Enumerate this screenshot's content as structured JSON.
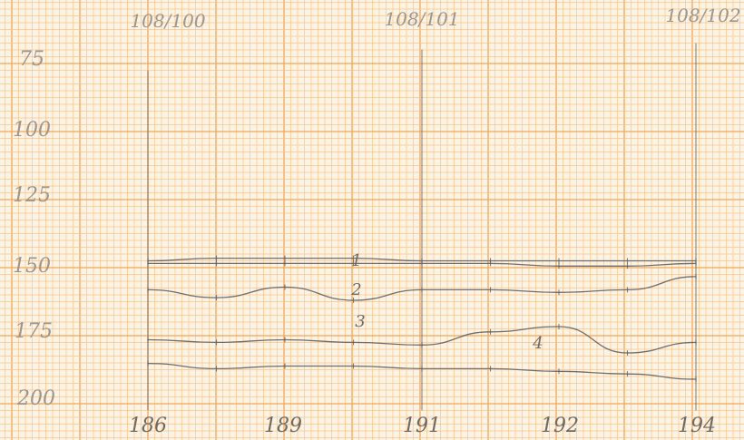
{
  "chart_data": {
    "type": "line",
    "title": "",
    "xlabel": "",
    "ylabel": "",
    "top_labels": [
      "108/100",
      "108/101",
      "108/102"
    ],
    "x_ticks": [
      186,
      189,
      191,
      192,
      194
    ],
    "y_ticks": [
      75,
      100,
      125,
      150,
      175,
      200
    ],
    "xlim": [
      186,
      194
    ],
    "ylim": [
      200,
      75
    ],
    "y_inverted": true,
    "grid": true,
    "x": [
      186,
      187,
      188,
      189,
      190,
      191,
      192,
      193,
      194
    ],
    "series": [
      {
        "name": "1",
        "values": [
          150,
          149,
          149,
          149,
          150,
          150,
          150,
          150,
          150
        ]
      },
      {
        "name": "1",
        "values": [
          151,
          151,
          151,
          151,
          151,
          151,
          152,
          152,
          151
        ]
      },
      {
        "name": "2",
        "values": [
          161,
          164,
          160,
          165,
          161,
          161,
          162,
          161,
          156
        ]
      },
      {
        "name": "3",
        "values": [
          180,
          181,
          180,
          181,
          182,
          177,
          175,
          185,
          181
        ]
      },
      {
        "name": "4",
        "values": [
          189,
          191,
          190,
          190,
          191,
          191,
          192,
          193,
          195
        ]
      }
    ],
    "series_label_names": [
      "1",
      "2",
      "3",
      "4"
    ],
    "colors": {
      "paper": "#fdf3e3",
      "grid_minor": "#f6c58c",
      "grid_major": "#f0a75a",
      "pencil": "#5f5f63",
      "ink": "#6f6a64"
    }
  }
}
